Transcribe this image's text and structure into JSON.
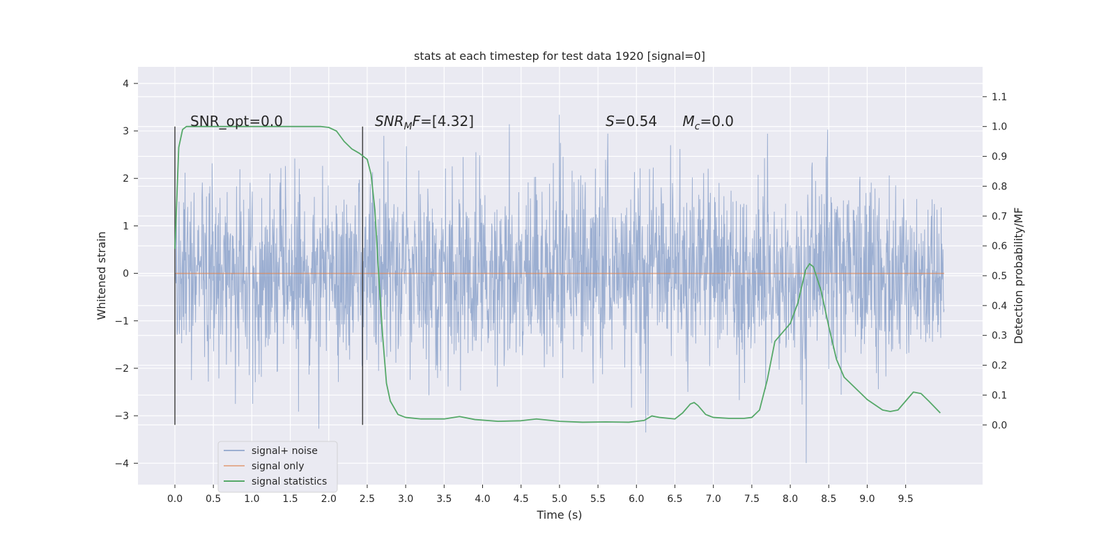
{
  "chart_data": {
    "type": "line",
    "title": "stats at each timestep for test data 1920 [signal=0]",
    "xlabel": "Time (s)",
    "ylabel": "Whitened strain",
    "ylabel_right": "Detection probability/MF",
    "xlim": [
      -0.48,
      10.5
    ],
    "ylim": [
      -4.45,
      4.35
    ],
    "ylim_right": [
      -0.2,
      1.2
    ],
    "x_ticks": [
      0.0,
      0.5,
      1.0,
      1.5,
      2.0,
      2.5,
      3.0,
      3.5,
      4.0,
      4.5,
      5.0,
      5.5,
      6.0,
      6.5,
      7.0,
      7.5,
      8.0,
      8.5,
      9.0,
      9.5
    ],
    "x_tick_labels": [
      "0.0",
      "0.5",
      "1.0",
      "1.5",
      "2.0",
      "2.5",
      "3.0",
      "3.5",
      "4.0",
      "4.5",
      "5.0",
      "5.5",
      "6.0",
      "6.5",
      "7.0",
      "7.5",
      "8.0",
      "8.5",
      "9.0",
      "9.5"
    ],
    "y_ticks": [
      -4,
      -3,
      -2,
      -1,
      0,
      1,
      2,
      3,
      4
    ],
    "y_tick_labels": [
      "−4",
      "−3",
      "−2",
      "−1",
      "0",
      "1",
      "2",
      "3",
      "4"
    ],
    "y_ticks_right": [
      0.0,
      0.1,
      0.2,
      0.3,
      0.4,
      0.5,
      0.6,
      0.7,
      0.8,
      0.9,
      1.0,
      1.1
    ],
    "y_tick_labels_right": [
      "0.0",
      "0.1",
      "0.2",
      "0.3",
      "0.4",
      "0.5",
      "0.6",
      "0.7",
      "0.8",
      "0.9",
      "1.0",
      "1.1"
    ],
    "grid": true,
    "legend_position": "lower-left",
    "colors": {
      "noise": "#4c72b0",
      "signal": "#dd8452",
      "stats": "#55a868",
      "background": "#eaeaf2",
      "grid": "#ffffff",
      "marker": "#444444"
    },
    "series": [
      {
        "name": "signal+ noise",
        "x_range": [
          0.0,
          10.0
        ],
        "n_samples": 2048,
        "seed": 1920,
        "std": 1.0
      },
      {
        "name": "signal only",
        "x": [
          0.0,
          10.0
        ],
        "y": [
          0.0,
          0.0
        ]
      },
      {
        "name": "signal statistics",
        "x": [
          0.0,
          0.05,
          0.1,
          0.15,
          0.25,
          0.5,
          1.0,
          1.5,
          1.9,
          2.0,
          2.1,
          2.2,
          2.3,
          2.4,
          2.5,
          2.55,
          2.6,
          2.65,
          2.7,
          2.75,
          2.8,
          2.9,
          3.0,
          3.2,
          3.5,
          3.7,
          3.9,
          4.2,
          4.5,
          4.7,
          5.0,
          5.3,
          5.6,
          5.9,
          6.1,
          6.2,
          6.3,
          6.5,
          6.6,
          6.7,
          6.75,
          6.8,
          6.9,
          7.0,
          7.2,
          7.4,
          7.5,
          7.6,
          7.7,
          7.8,
          7.9,
          8.0,
          8.1,
          8.2,
          8.25,
          8.3,
          8.4,
          8.5,
          8.6,
          8.7,
          8.9,
          9.0,
          9.2,
          9.3,
          9.4,
          9.5,
          9.6,
          9.7,
          9.8,
          9.95
        ],
        "y": [
          0.59,
          0.93,
          0.99,
          1.0,
          1.0,
          1.0,
          1.0,
          1.0,
          1.0,
          0.997,
          0.985,
          0.95,
          0.925,
          0.91,
          0.89,
          0.84,
          0.72,
          0.5,
          0.3,
          0.14,
          0.08,
          0.035,
          0.025,
          0.02,
          0.02,
          0.028,
          0.018,
          0.012,
          0.014,
          0.02,
          0.012,
          0.009,
          0.01,
          0.009,
          0.015,
          0.03,
          0.025,
          0.02,
          0.04,
          0.07,
          0.075,
          0.065,
          0.035,
          0.025,
          0.022,
          0.022,
          0.025,
          0.05,
          0.15,
          0.28,
          0.31,
          0.34,
          0.41,
          0.52,
          0.54,
          0.53,
          0.45,
          0.33,
          0.22,
          0.16,
          0.11,
          0.085,
          0.05,
          0.045,
          0.05,
          0.08,
          0.11,
          0.105,
          0.08,
          0.04
        ]
      }
    ],
    "vertical_markers": [
      0.0,
      2.44
    ],
    "annotations": [
      {
        "text": "SNR_opt=0.0",
        "x": 0.2,
        "y": 3.1
      },
      {
        "text": "F=[4.32]",
        "sub": "M",
        "pre": "SNR",
        "x": 2.6,
        "y": 3.1
      },
      {
        "text": "S=0.54",
        "x": 5.6,
        "y": 3.1
      },
      {
        "text": "=0.0",
        "sub": "c",
        "pre": "M",
        "x": 6.6,
        "y": 3.1
      }
    ]
  }
}
